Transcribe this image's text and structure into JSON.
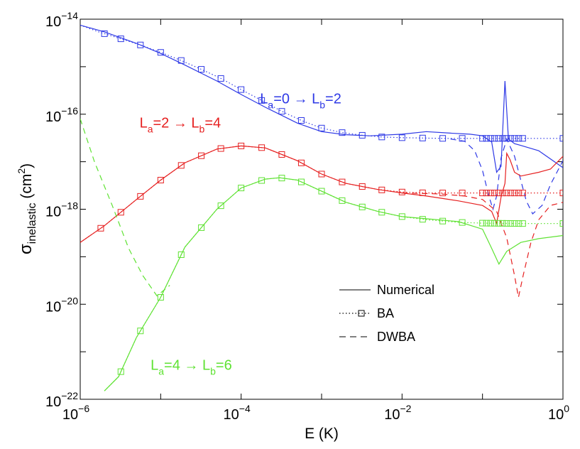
{
  "chart_data": {
    "type": "line",
    "xscale": "log",
    "yscale": "log",
    "xlim": [
      1e-06,
      1
    ],
    "ylim": [
      1e-22,
      1e-14
    ],
    "xlabel": "E (K)",
    "ylabel_main": "σ",
    "ylabel_sub": "inelastic",
    "ylabel_unit_open": " (cm",
    "ylabel_unit_sup": "2",
    "ylabel_unit_close": ")",
    "x_ticks": [
      {
        "value": 1e-06,
        "base": "10",
        "exp": "−6"
      },
      {
        "value": 0.0001,
        "base": "10",
        "exp": "−4"
      },
      {
        "value": 0.01,
        "base": "10",
        "exp": "−2"
      },
      {
        "value": 1,
        "base": "10",
        "exp": "0"
      }
    ],
    "y_ticks": [
      {
        "value": 1e-22,
        "base": "10",
        "exp": "−22"
      },
      {
        "value": 1e-20,
        "base": "10",
        "exp": "−20"
      },
      {
        "value": 1e-18,
        "base": "10",
        "exp": "−18"
      },
      {
        "value": 1e-16,
        "base": "10",
        "exp": "−16"
      },
      {
        "value": 1e-14,
        "base": "10",
        "exp": "−14"
      }
    ],
    "series": [
      {
        "name": "La=0->Lb=2 Numerical",
        "color": "#2e39e6",
        "style": "solid",
        "points": [
          [
            1e-06,
            7.5e-15
          ],
          [
            2e-06,
            5.4e-15
          ],
          [
            5e-06,
            3.1e-15
          ],
          [
            1e-05,
            1.9e-15
          ],
          [
            2e-05,
            1.08e-15
          ],
          [
            5e-05,
            5e-16
          ],
          [
            0.0001,
            2.6e-16
          ],
          [
            0.0002,
            1.4e-16
          ],
          [
            0.0005,
            6.5e-17
          ],
          [
            0.001,
            4.3e-17
          ],
          [
            0.002,
            3.7e-17
          ],
          [
            0.004,
            3.5e-17
          ],
          [
            0.01,
            3.8e-17
          ],
          [
            0.02,
            4.3e-17
          ],
          [
            0.04,
            4e-17
          ],
          [
            0.07,
            3.8e-17
          ],
          [
            0.1,
            3.5e-17
          ],
          [
            0.13,
            2.6e-17
          ],
          [
            0.15,
            6e-18
          ],
          [
            0.17,
            8e-18
          ],
          [
            0.19,
            5e-16
          ],
          [
            0.21,
            3e-17
          ],
          [
            0.25,
            2.4e-17
          ],
          [
            0.3,
            2.2e-17
          ],
          [
            0.5,
            1.7e-17
          ],
          [
            1,
            7.5e-18
          ]
        ]
      },
      {
        "name": "La=0->Lb=2 BA",
        "color": "#2e39e6",
        "style": "dotted-marker",
        "points": [
          [
            1e-06,
            7.5e-15
          ],
          [
            1.7e-06,
            5.4e-15
          ],
          [
            3e-06,
            4e-15
          ],
          [
            5.5e-06,
            2.9e-15
          ],
          [
            1e-05,
            2e-15
          ],
          [
            1.8e-05,
            1.35e-15
          ],
          [
            3.2e-05,
            8.8e-16
          ],
          [
            5.8e-05,
            5.5e-16
          ],
          [
            0.0001,
            3.3e-16
          ],
          [
            0.00018,
            1.95e-16
          ],
          [
            0.00032,
            1.15e-16
          ],
          [
            0.00058,
            7.2e-17
          ],
          [
            0.001,
            5.1e-17
          ],
          [
            0.0018,
            4.1e-17
          ],
          [
            0.0032,
            3.6e-17
          ],
          [
            0.0058,
            3.3e-17
          ],
          [
            0.01,
            3.2e-17
          ],
          [
            0.018,
            3.15e-17
          ],
          [
            0.032,
            3.1e-17
          ],
          [
            0.058,
            3.1e-17
          ],
          [
            0.1,
            3.1e-17
          ],
          [
            0.2,
            3.1e-17
          ],
          [
            0.5,
            3.1e-17
          ],
          [
            1,
            3.1e-17
          ]
        ],
        "markers": [
          2e-06,
          3.2e-06,
          5.6e-06,
          1e-05,
          1.8e-05,
          3.2e-05,
          5.6e-05,
          0.0001,
          0.00018,
          0.00032,
          0.00056,
          0.001,
          0.0018,
          0.0032,
          0.0056,
          0.01,
          0.018,
          0.032,
          0.056,
          0.1,
          0.112,
          0.126,
          0.141,
          0.158,
          0.178,
          0.2,
          0.224,
          0.251,
          0.282,
          0.316,
          1
        ]
      },
      {
        "name": "La=0->Lb=2 DWBA",
        "color": "#2e39e6",
        "style": "dashed",
        "points": [
          [
            0.04,
            3e-17
          ],
          [
            0.06,
            2.7e-17
          ],
          [
            0.08,
            1.7e-17
          ],
          [
            0.1,
            6.5e-18
          ],
          [
            0.12,
            1.9e-18
          ],
          [
            0.135,
            1e-18
          ],
          [
            0.15,
            1.9e-18
          ],
          [
            0.17,
            1.2e-17
          ],
          [
            0.2,
            3e-17
          ],
          [
            0.25,
            1.3e-17
          ],
          [
            0.3,
            4e-18
          ],
          [
            0.35,
            1.5e-18
          ],
          [
            0.42,
            8e-19
          ],
          [
            0.55,
            1.2e-18
          ],
          [
            0.7,
            3.3e-18
          ],
          [
            1,
            1.05e-17
          ]
        ]
      },
      {
        "name": "La=2->Lb=4 Numerical",
        "color": "#e62020",
        "style": "solid",
        "points": [
          [
            1e-06,
            2e-19
          ],
          [
            2e-06,
            4.5e-19
          ],
          [
            5e-06,
            1.6e-18
          ],
          [
            1e-05,
            4.1e-18
          ],
          [
            2e-05,
            9.5e-18
          ],
          [
            5e-05,
            1.85e-17
          ],
          [
            0.0001,
            2.15e-17
          ],
          [
            0.0002,
            1.95e-17
          ],
          [
            0.0005,
            1.05e-17
          ],
          [
            0.001,
            5.5e-18
          ],
          [
            0.002,
            3.5e-18
          ],
          [
            0.005,
            2.6e-18
          ],
          [
            0.01,
            2.2e-18
          ],
          [
            0.02,
            1.9e-18
          ],
          [
            0.05,
            1.5e-18
          ],
          [
            0.1,
            1.2e-18
          ],
          [
            0.13,
            9e-19
          ],
          [
            0.15,
            5e-19
          ],
          [
            0.17,
            1.8e-18
          ],
          [
            0.19,
            3.5e-18
          ],
          [
            0.2,
            1.5e-17
          ],
          [
            0.22,
            1.1e-17
          ],
          [
            0.25,
            6e-18
          ],
          [
            0.3,
            5e-18
          ],
          [
            0.5,
            6e-18
          ],
          [
            0.7,
            7e-18
          ],
          [
            1,
            1.3e-17
          ]
        ]
      },
      {
        "name": "La=2->Lb=4 BA",
        "color": "#e62020",
        "style": "dotted-marker",
        "points": [
          [
            1e-06,
            2e-19
          ],
          [
            2e-06,
            4.5e-19
          ],
          [
            5e-06,
            1.6e-18
          ],
          [
            1e-05,
            4.1e-18
          ],
          [
            2e-05,
            9.5e-18
          ],
          [
            5e-05,
            1.85e-17
          ],
          [
            0.0001,
            2.15e-17
          ],
          [
            0.0002,
            1.95e-17
          ],
          [
            0.0005,
            1.05e-17
          ],
          [
            0.001,
            5.5e-18
          ],
          [
            0.002,
            3.5e-18
          ],
          [
            0.005,
            2.6e-18
          ],
          [
            0.01,
            2.3e-18
          ],
          [
            0.02,
            2.2e-18
          ],
          [
            0.05,
            2.2e-18
          ],
          [
            0.1,
            2.2e-18
          ],
          [
            0.3,
            2.2e-18
          ],
          [
            1,
            2.2e-18
          ]
        ],
        "markers": [
          1.8e-06,
          3.2e-06,
          5.6e-06,
          1e-05,
          1.8e-05,
          3.2e-05,
          5.6e-05,
          0.0001,
          0.00018,
          0.00032,
          0.00056,
          0.001,
          0.0018,
          0.0032,
          0.0056,
          0.01,
          0.018,
          0.032,
          0.056,
          0.1,
          0.112,
          0.126,
          0.141,
          0.158,
          0.178,
          0.2,
          0.224,
          0.251,
          0.282,
          0.316,
          1
        ]
      },
      {
        "name": "La=2->Lb=4 DWBA",
        "color": "#e62020",
        "style": "dashed",
        "points": [
          [
            0.01,
            2.2e-18
          ],
          [
            0.03,
            2.1e-18
          ],
          [
            0.06,
            1.9e-18
          ],
          [
            0.1,
            1.6e-18
          ],
          [
            0.15,
            9e-19
          ],
          [
            0.2,
            2.5e-19
          ],
          [
            0.25,
            4e-20
          ],
          [
            0.28,
            1.4e-20
          ],
          [
            0.32,
            4e-20
          ],
          [
            0.4,
            2e-19
          ],
          [
            0.5,
            6e-19
          ],
          [
            0.7,
            1.2e-18
          ],
          [
            1,
            1.4e-18
          ]
        ]
      },
      {
        "name": "La=4->Lb=6 Numerical",
        "color": "#5ee232",
        "style": "solid",
        "points": [
          [
            2e-06,
            1.5e-22
          ],
          [
            3e-06,
            3e-22
          ],
          [
            5e-06,
            2e-21
          ],
          [
            1e-05,
            1.4e-20
          ],
          [
            2e-05,
            1.6e-19
          ],
          [
            5e-05,
            1e-18
          ],
          [
            0.0001,
            2.8e-18
          ],
          [
            0.0002,
            4.3e-18
          ],
          [
            0.0003,
            4.6e-18
          ],
          [
            0.0005,
            4.1e-18
          ],
          [
            0.001,
            2.4e-18
          ],
          [
            0.002,
            1.4e-18
          ],
          [
            0.005,
            9e-19
          ],
          [
            0.01,
            7e-19
          ],
          [
            0.02,
            6.3e-19
          ],
          [
            0.05,
            5.5e-19
          ],
          [
            0.1,
            3.8e-19
          ],
          [
            0.13,
            1.5e-19
          ],
          [
            0.16,
            7e-20
          ],
          [
            0.2,
            1.3e-19
          ],
          [
            0.3,
            2e-19
          ],
          [
            0.5,
            2.4e-19
          ],
          [
            1,
            2.8e-19
          ]
        ]
      },
      {
        "name": "La=4->Lb=6 BA",
        "color": "#5ee232",
        "style": "dotted-marker",
        "points": [
          [
            2e-06,
            1.5e-22
          ],
          [
            3e-06,
            3e-22
          ],
          [
            5e-06,
            2e-21
          ],
          [
            1e-05,
            1.4e-20
          ],
          [
            2e-05,
            1.6e-19
          ],
          [
            5e-05,
            1e-18
          ],
          [
            0.0001,
            2.8e-18
          ],
          [
            0.0002,
            4.3e-18
          ],
          [
            0.0003,
            4.6e-18
          ],
          [
            0.0005,
            4.1e-18
          ],
          [
            0.001,
            2.4e-18
          ],
          [
            0.002,
            1.4e-18
          ],
          [
            0.005,
            9e-19
          ],
          [
            0.01,
            7e-19
          ],
          [
            0.02,
            6e-19
          ],
          [
            0.05,
            5.3e-19
          ],
          [
            0.1,
            5.1e-19
          ],
          [
            0.3,
            5e-19
          ],
          [
            1,
            5e-19
          ]
        ],
        "markers": [
          3.2e-06,
          5.6e-06,
          1e-05,
          1.8e-05,
          3.2e-05,
          5.6e-05,
          0.0001,
          0.00018,
          0.00032,
          0.00056,
          0.001,
          0.0018,
          0.0032,
          0.0056,
          0.01,
          0.018,
          0.032,
          0.056,
          0.1,
          0.112,
          0.126,
          0.141,
          0.158,
          0.178,
          0.2,
          0.224,
          0.251,
          0.282,
          0.316,
          1
        ]
      },
      {
        "name": "La=4->Lb=6 DWBA",
        "color": "#5ee232",
        "style": "dashed",
        "points": [
          [
            1e-06,
            8e-17
          ],
          [
            1.5e-06,
            1e-17
          ],
          [
            2.5e-06,
            1.2e-18
          ],
          [
            4e-06,
            1.5e-19
          ],
          [
            6e-06,
            4e-20
          ],
          [
            9e-06,
            1.5e-20
          ],
          [
            1.3e-05,
            2.5e-20
          ]
        ]
      }
    ],
    "annotations": [
      {
        "id": "blue",
        "color": "#2e39e6",
        "x": 0.00055,
        "y": 1.7e-16,
        "prefix": "L",
        "sub1": "a",
        "mid": "=0 → L",
        "sub2": "b",
        "suffix": "=2"
      },
      {
        "id": "red",
        "color": "#e62020",
        "x": 1.75e-05,
        "y": 5.2e-17,
        "prefix": "L",
        "sub1": "a",
        "mid": "=2 → L",
        "sub2": "b",
        "suffix": "=4"
      },
      {
        "id": "green",
        "color": "#5ee232",
        "x": 2.4e-05,
        "y": 4.2e-22,
        "prefix": "L",
        "sub1": "a",
        "mid": "=4 → L",
        "sub2": "b",
        "suffix": "=6"
      }
    ],
    "legend": {
      "placement": "lower-right",
      "entries": [
        {
          "label": "Numerical",
          "style": "solid"
        },
        {
          "label": "BA",
          "style": "dotted-marker"
        },
        {
          "label": "DWBA",
          "style": "dashed"
        }
      ]
    }
  }
}
